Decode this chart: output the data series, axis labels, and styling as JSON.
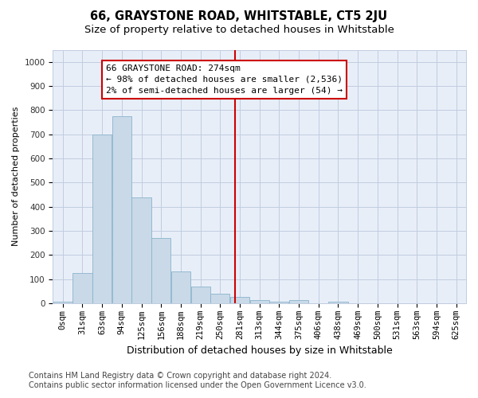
{
  "title": "66, GRAYSTONE ROAD, WHITSTABLE, CT5 2JU",
  "subtitle": "Size of property relative to detached houses in Whitstable",
  "xlabel": "Distribution of detached houses by size in Whitstable",
  "ylabel": "Number of detached properties",
  "bar_labels": [
    "0sqm",
    "31sqm",
    "63sqm",
    "94sqm",
    "125sqm",
    "156sqm",
    "188sqm",
    "219sqm",
    "250sqm",
    "281sqm",
    "313sqm",
    "344sqm",
    "375sqm",
    "406sqm",
    "438sqm",
    "469sqm",
    "500sqm",
    "531sqm",
    "563sqm",
    "594sqm",
    "625sqm"
  ],
  "bar_values": [
    7,
    125,
    700,
    775,
    440,
    270,
    132,
    70,
    40,
    25,
    14,
    8,
    13,
    0,
    8,
    0,
    0,
    0,
    0,
    0,
    0
  ],
  "bar_color": "#c9d9e8",
  "bar_edgecolor": "#8ab4cc",
  "grid_color": "#c0cce0",
  "background_color": "#e8eef8",
  "vline_color": "#cc0000",
  "annotation_text": "66 GRAYSTONE ROAD: 274sqm\n← 98% of detached houses are smaller (2,536)\n2% of semi-detached houses are larger (54) →",
  "annotation_box_color": "#cc0000",
  "ylim": [
    0,
    1050
  ],
  "yticks": [
    0,
    100,
    200,
    300,
    400,
    500,
    600,
    700,
    800,
    900,
    1000
  ],
  "footer_line1": "Contains HM Land Registry data © Crown copyright and database right 2024.",
  "footer_line2": "Contains public sector information licensed under the Open Government Licence v3.0.",
  "title_fontsize": 10.5,
  "subtitle_fontsize": 9.5,
  "xlabel_fontsize": 9,
  "ylabel_fontsize": 8,
  "tick_fontsize": 7.5,
  "footer_fontsize": 7,
  "annotation_fontsize": 8
}
